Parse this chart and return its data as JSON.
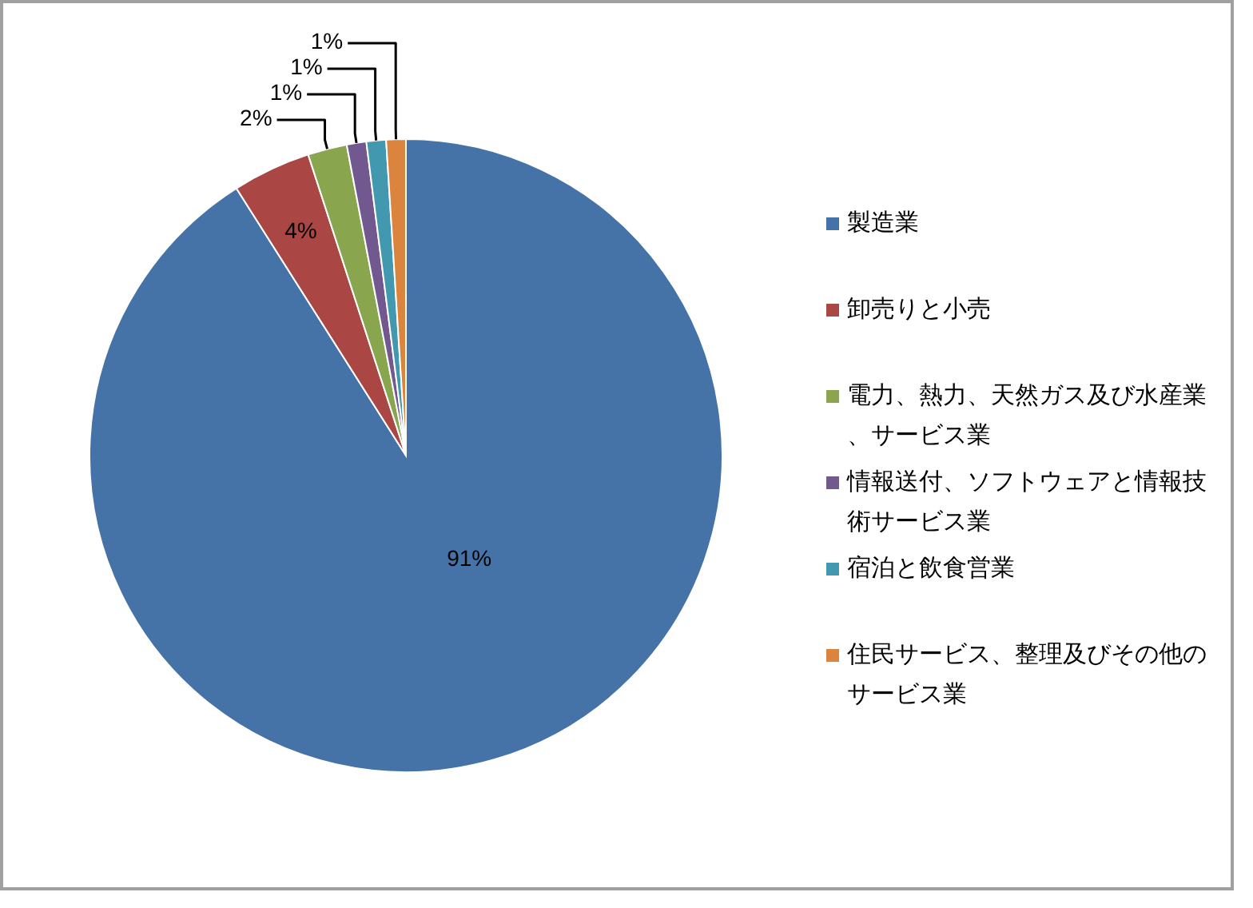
{
  "chart_data": {
    "type": "pie",
    "categories": [
      "製造業",
      "卸売りと小売",
      "電力、熱力、天然ガス及び水産業、サービス業",
      "情報送付、ソフトウェアと情報技術サービス業",
      "宿泊と飲食営業",
      "住民サービス、整理及びその他のサービス業"
    ],
    "values": [
      91,
      4,
      2,
      1,
      1,
      1
    ],
    "colors": [
      "#4572a7",
      "#aa4643",
      "#89a54e",
      "#71588f",
      "#4198af",
      "#db843d"
    ],
    "value_labels": [
      "91%",
      "4%",
      "2%",
      "1%",
      "1%",
      "1%"
    ],
    "legend": "right"
  }
}
